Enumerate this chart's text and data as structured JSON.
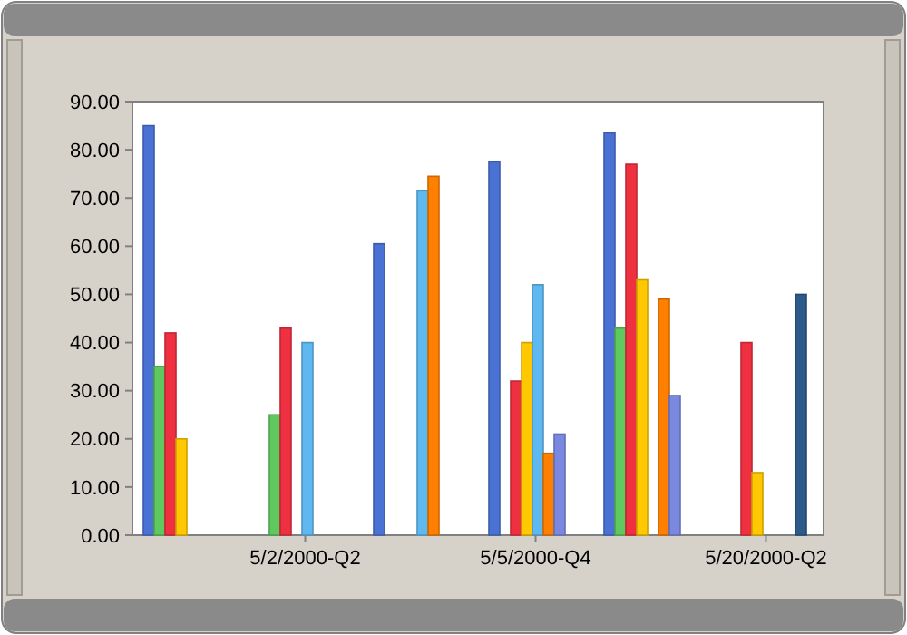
{
  "chart_data": {
    "type": "bar",
    "categories": [
      null,
      "5/2/2000-Q2",
      null,
      "5/5/2000-Q4",
      null,
      "5/20/2000-Q2"
    ],
    "series": [
      {
        "color": "#4a72d4",
        "values": [
          85,
          null,
          60.5,
          77.5,
          83.5,
          null
        ]
      },
      {
        "color": "#5fc85f",
        "values": [
          35,
          25,
          null,
          null,
          43,
          null
        ]
      },
      {
        "color": "#ee3040",
        "values": [
          42,
          43,
          null,
          32,
          77,
          40
        ]
      },
      {
        "color": "#ffc800",
        "values": [
          20,
          null,
          null,
          40,
          53,
          13
        ]
      },
      {
        "color": "#5fb8f0",
        "values": [
          null,
          40,
          71.5,
          52,
          null,
          null
        ]
      },
      {
        "color": "#ff7f00",
        "values": [
          null,
          null,
          74.5,
          17,
          49,
          null
        ]
      },
      {
        "color": "#7b88e0",
        "values": [
          null,
          null,
          null,
          21,
          29,
          null
        ]
      },
      {
        "color": "#2c5a8a",
        "values": [
          null,
          null,
          null,
          null,
          null,
          50
        ]
      }
    ],
    "ylim": [
      0,
      90
    ],
    "yticks": [
      {
        "value": 0,
        "label": "0.00"
      },
      {
        "value": 10,
        "label": "10.00"
      },
      {
        "value": 20,
        "label": "20.00"
      },
      {
        "value": 30,
        "label": "30.00"
      },
      {
        "value": 40,
        "label": "40.00"
      },
      {
        "value": 50,
        "label": "50.00"
      },
      {
        "value": 60,
        "label": "60.00"
      },
      {
        "value": 70,
        "label": "70.00"
      },
      {
        "value": 80,
        "label": "80.00"
      },
      {
        "value": 90,
        "label": "90.00"
      }
    ],
    "grid": false
  }
}
